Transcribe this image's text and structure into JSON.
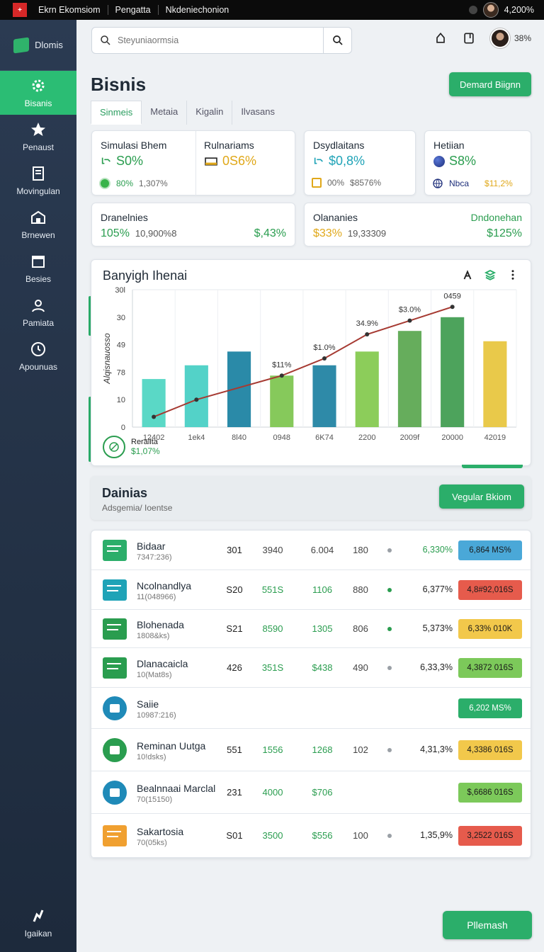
{
  "topbar": {
    "app_name": "Ekrn Ekomsiom",
    "menu": [
      "Pengatta",
      "Nkdeniechonion"
    ],
    "balance": "4,200%"
  },
  "sidebar": {
    "brand": "Dlomis",
    "items": [
      {
        "label": "Bisanis",
        "icon": "gear-icon",
        "active": true
      },
      {
        "label": "Penaust",
        "icon": "star-icon",
        "active": false
      },
      {
        "label": "Movingulan",
        "icon": "document-icon",
        "active": false
      },
      {
        "label": "Brnewen",
        "icon": "building-icon",
        "active": false
      },
      {
        "label": "Besies",
        "icon": "calendar-icon",
        "active": false
      },
      {
        "label": "Pamiata",
        "icon": "user-icon",
        "active": false
      },
      {
        "label": "Apounuas",
        "icon": "clock-icon",
        "active": false
      }
    ],
    "bottom": {
      "label": "Igaikan",
      "icon": "support-icon"
    }
  },
  "header": {
    "search_placeholder": "Steyuniaormsia",
    "user_pct": "38%"
  },
  "page": {
    "title": "Bisnis",
    "primary_button": "Demard Biignn",
    "tabs": [
      "Sinmeis",
      "Metaia",
      "Kigalin",
      "Ilvasans"
    ]
  },
  "stats": [
    {
      "title": "Simulasi Bhem",
      "value": "S0%",
      "sub1": "80%",
      "sub2": "1,307%"
    },
    {
      "title": "Rulnariams",
      "value": "0S6%"
    },
    {
      "title": "Dsydlaitans",
      "value": "$0,8%",
      "sub1": "00%",
      "sub2": "$8576%"
    },
    {
      "title": "Hetiian",
      "value": "S8%",
      "sub1": "Nbca",
      "sub2": "$11,2%"
    }
  ],
  "stats2": [
    {
      "title": "Dranelnies",
      "value": "105%",
      "sub": "10,900%8",
      "right": "$,43%"
    },
    {
      "title": "Olananies",
      "right_title": "Dndonehan",
      "value": "$33%",
      "sub": "19,33309",
      "right": "$125%"
    }
  ],
  "chart": {
    "title": "Banyigh Ihenai",
    "legend_name": "Reraiita",
    "legend_value": "$1,07%"
  },
  "chart_data": {
    "type": "bar",
    "categories": [
      "12402",
      "1ek4",
      "8l40",
      "0948",
      "6K74",
      "2200",
      "2009f",
      "20000",
      "42019"
    ],
    "values": [
      14,
      18,
      22,
      15,
      18,
      22,
      28,
      32,
      25
    ],
    "colors": [
      "#5ad8c6",
      "#53d2c8",
      "#2a8aa8",
      "#86c95b",
      "#2e8aa8",
      "#8ccd5a",
      "#66ad5c",
      "#4da35c",
      "#e9c94a"
    ],
    "line": {
      "name": "",
      "values": [
        3,
        8,
        null,
        15,
        20,
        27,
        31,
        35,
        null
      ],
      "color": "#a63a32"
    },
    "annotations": [
      "$11%",
      "$1.0%",
      "34.9%",
      "$3.0%",
      "0459"
    ],
    "yticks": [
      "0",
      "10",
      "78",
      "49",
      "30",
      "30l"
    ],
    "ylabel": "Alqisnauosso",
    "ylim": [
      0,
      40
    ]
  },
  "list": {
    "title": "Dainias",
    "subtitle": "Adsgemia/ Ioentse",
    "button": "Vegular Bkiom",
    "rows": [
      {
        "name": "Bidaar",
        "code": "7347:236)",
        "c1": "301",
        "c2": "3940",
        "c3": "6.004",
        "c4": "180",
        "dot": "#9aa0a6",
        "pct": "6,330%",
        "pct_color": "#2a9d4f",
        "badge": "6,864 MS%",
        "badge_color": "#4aa8d8",
        "icon": "chat-icon"
      },
      {
        "name": "Ncolnandlya",
        "code": "11(048966)",
        "c1": "S20",
        "c2": "551S",
        "c3": "1106",
        "c4": "880",
        "dot": "#2a9d4f",
        "pct": "6,377%",
        "pct_color": "#222",
        "badge": "4,8#92,016S",
        "badge_color": "#e65b4c",
        "icon": "card-icon"
      },
      {
        "name": "Blohenada",
        "code": "1808&ks)",
        "c1": "S21",
        "c2": "8590",
        "c3": "1305",
        "c4": "806",
        "dot": "#2a9d4f",
        "pct": "5,373%",
        "pct_color": "#222",
        "badge": "6,33% 010K",
        "badge_color": "#f2c84b",
        "icon": "gear-puzzle-icon"
      },
      {
        "name": "Dlanacaicla",
        "code": "10(Mat8s)",
        "c1": "426",
        "c2": "351S",
        "c3": "$438",
        "c4": "490",
        "dot": "#9aa0a6",
        "pct": "6,33,3%",
        "pct_color": "#222",
        "badge": "4,3872 016S",
        "badge_color": "#7cc95a",
        "icon": "table-icon"
      },
      {
        "name": "Saiie",
        "code": "10987:216)",
        "badge": "6,202 MS%",
        "badge_color": "#2bae6a",
        "icon": "settings-icon"
      },
      {
        "name": "Reminan Uutga",
        "code": "10!dsks)",
        "c1": "551",
        "c2": "1556",
        "c3": "1268",
        "c4": "102",
        "dot": "#9aa0a6",
        "pct": "4,31,3%",
        "pct_color": "#222",
        "badge": "4,3386 016S",
        "badge_color": "#f2c84b",
        "icon": "plus-circle-icon"
      },
      {
        "name": "Bealnnaai Marclal",
        "code": "70(15150)",
        "c1": "231",
        "c2": "4000",
        "c3": "$706",
        "badge": "$,6686 016S",
        "badge_color": "#7cc95a",
        "icon": "robot-icon"
      },
      {
        "name": "Sakartosia",
        "code": "70(05ks)",
        "c1": "S01",
        "c2": "3500",
        "c3": "$556",
        "c4": "100",
        "dot": "#9aa0a6",
        "pct": "1,35,9%",
        "pct_color": "#222",
        "badge": "3,2522 016S",
        "badge_color": "#e65b4c",
        "icon": "chart-box-icon"
      }
    ]
  },
  "footer": {
    "button": "Pllemash"
  }
}
